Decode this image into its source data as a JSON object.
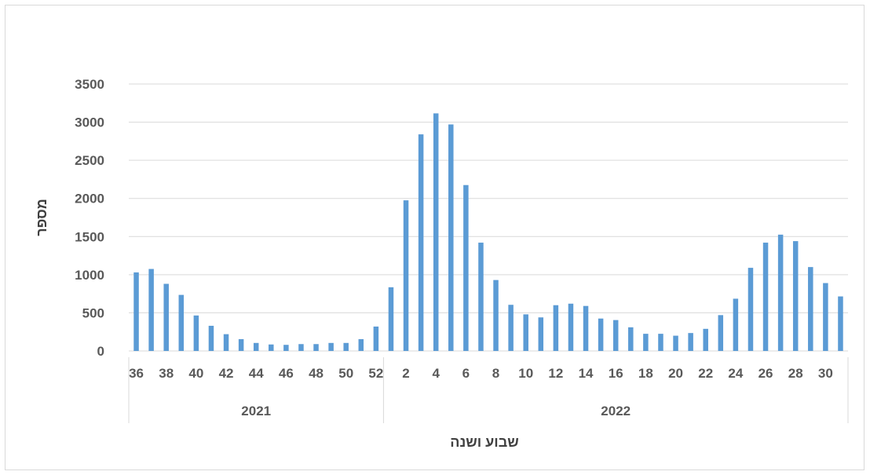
{
  "chart_data": {
    "type": "bar",
    "xlabel": "שבוע ושנה",
    "ylabel": "מספר",
    "ylim": [
      0,
      3500
    ],
    "yticks": [
      0,
      500,
      1000,
      1500,
      2000,
      2500,
      3000,
      3500
    ],
    "grid": true,
    "legend": "none",
    "bar_color": "#5b9bd5",
    "groups": [
      {
        "label": "2021",
        "start": 0,
        "count": 17
      },
      {
        "label": "2022",
        "start": 17,
        "count": 31
      }
    ],
    "tick_labels_shown": [
      "36",
      "38",
      "40",
      "42",
      "44",
      "46",
      "48",
      "50",
      "52",
      "2",
      "4",
      "6",
      "8",
      "10",
      "12",
      "14",
      "16",
      "18",
      "20",
      "22",
      "24",
      "26",
      "28",
      "30"
    ],
    "categories": [
      "36",
      "37",
      "38",
      "39",
      "40",
      "41",
      "42",
      "43",
      "44",
      "45",
      "46",
      "47",
      "48",
      "49",
      "50",
      "51",
      "52",
      "1",
      "2",
      "3",
      "4",
      "5",
      "6",
      "7",
      "8",
      "9",
      "10",
      "11",
      "12",
      "13",
      "14",
      "15",
      "16",
      "17",
      "18",
      "19",
      "20",
      "21",
      "22",
      "23",
      "24",
      "25",
      "26",
      "27",
      "28",
      "29",
      "30",
      "31"
    ],
    "values": [
      1030,
      1075,
      880,
      735,
      465,
      330,
      220,
      155,
      105,
      85,
      80,
      90,
      90,
      105,
      105,
      155,
      320,
      835,
      1975,
      2840,
      3115,
      2970,
      2175,
      1420,
      930,
      605,
      480,
      440,
      600,
      620,
      590,
      425,
      405,
      310,
      225,
      225,
      200,
      235,
      290,
      470,
      685,
      1090,
      1420,
      1525,
      1440,
      1100,
      890,
      715
    ]
  }
}
